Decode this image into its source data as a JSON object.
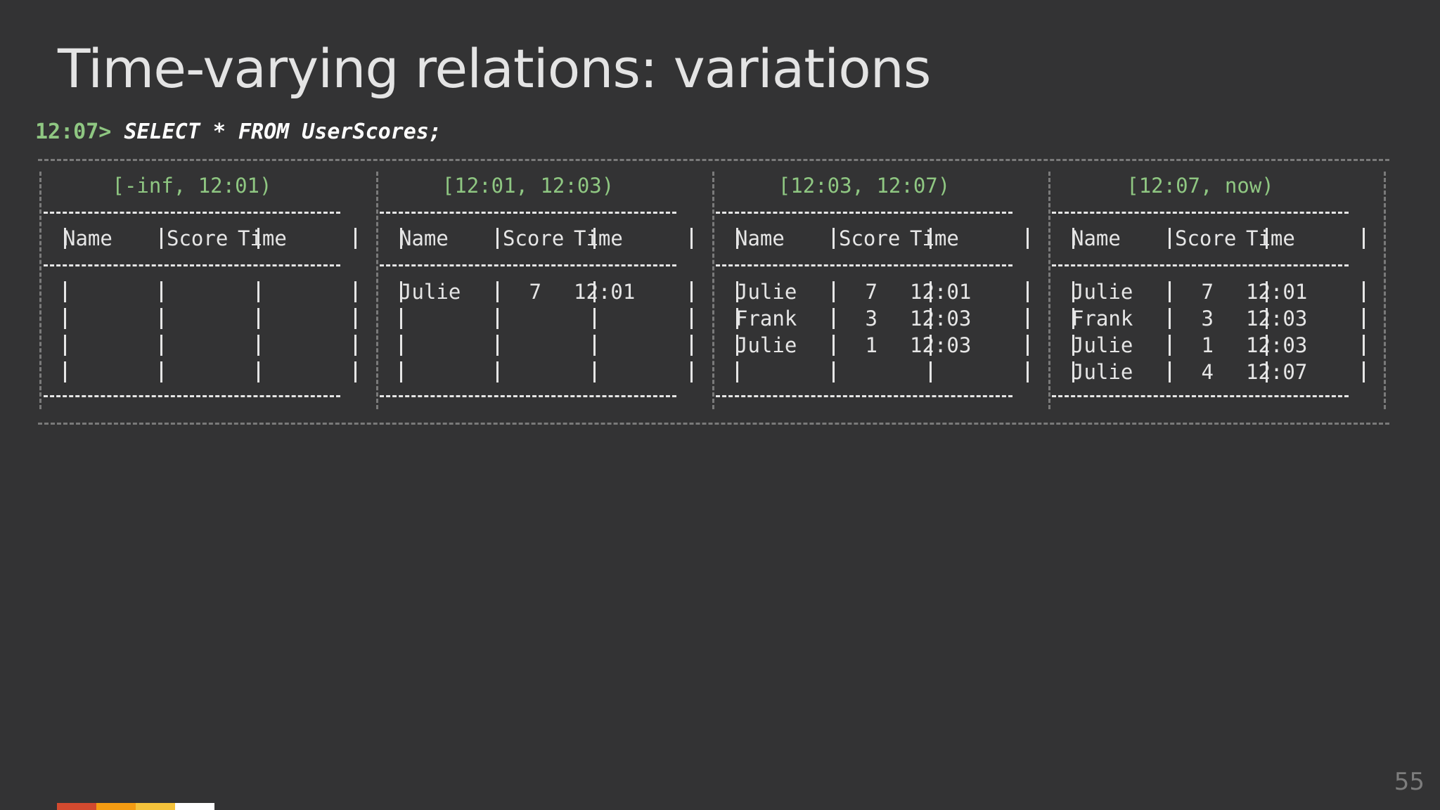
{
  "title": "Time-varying relations: variations",
  "prompt": "12:07>",
  "query": "SELECT * FROM UserScores;",
  "columns": [
    "Name",
    "Score",
    "Time"
  ],
  "panels": [
    {
      "interval": "[-inf, 12:01)",
      "rows": []
    },
    {
      "interval": "[12:01, 12:03)",
      "rows": [
        {
          "name": "Julie",
          "score": "7",
          "time": "12:01"
        }
      ]
    },
    {
      "interval": "[12:03, 12:07)",
      "rows": [
        {
          "name": "Julie",
          "score": "7",
          "time": "12:01"
        },
        {
          "name": "Frank",
          "score": "3",
          "time": "12:03"
        },
        {
          "name": "Julie",
          "score": "1",
          "time": "12:03"
        }
      ]
    },
    {
      "interval": "[12:07, now)",
      "rows": [
        {
          "name": "Julie",
          "score": "7",
          "time": "12:01"
        },
        {
          "name": "Frank",
          "score": "3",
          "time": "12:03"
        },
        {
          "name": "Julie",
          "score": "1",
          "time": "12:03"
        },
        {
          "name": "Julie",
          "score": "4",
          "time": "12:07"
        }
      ]
    }
  ],
  "page_number": "55",
  "colors": {
    "background": "#333334",
    "accent_green": "#8fc782",
    "footer_bar": [
      "#d34a2f",
      "#f59c12",
      "#f5c33b",
      "#ffffff"
    ]
  }
}
